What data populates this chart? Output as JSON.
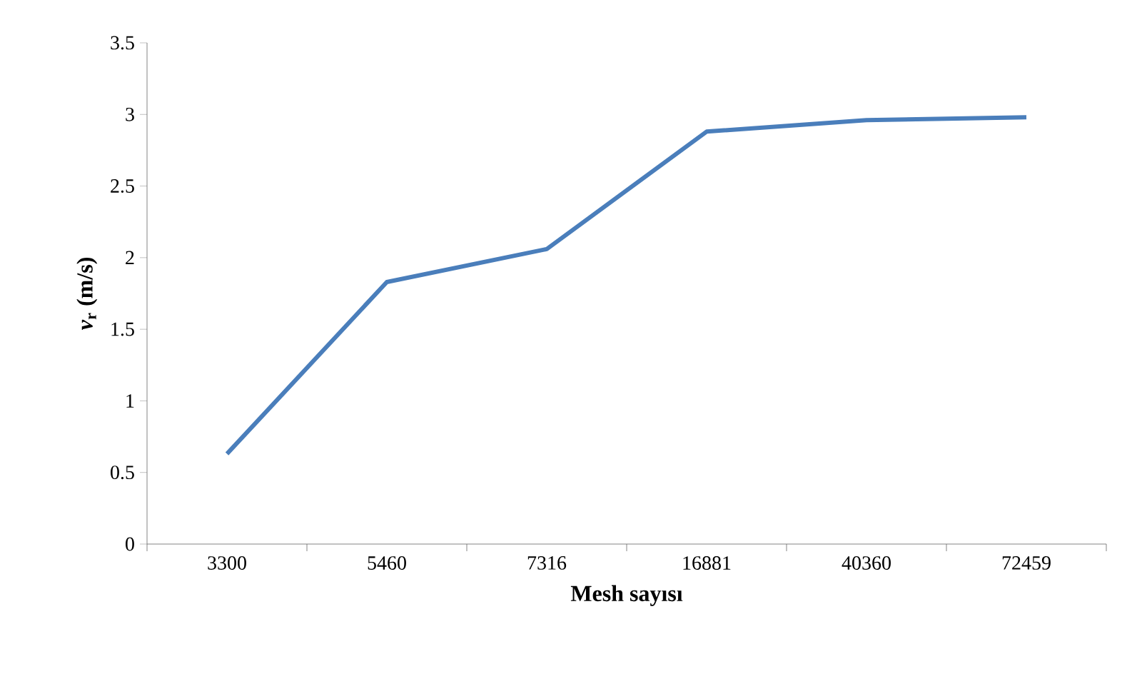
{
  "chart_data": {
    "type": "line",
    "xlabel": "Mesh sayısı",
    "ylabel": "*v*$_{r}$ (m/s)",
    "categories": [
      "3300",
      "5460",
      "7316",
      "16881",
      "40360",
      "72459"
    ],
    "series": [
      {
        "color": "#4a7ebb",
        "values": [
          0.63,
          1.83,
          2.06,
          2.88,
          2.96,
          2.98
        ]
      }
    ],
    "ylim": [
      0,
      3.5
    ],
    "yticks": [
      0,
      0.5,
      1,
      1.5,
      2,
      2.5,
      3,
      3.5
    ],
    "grid": false,
    "marker": "none",
    "line_style": "solid"
  }
}
